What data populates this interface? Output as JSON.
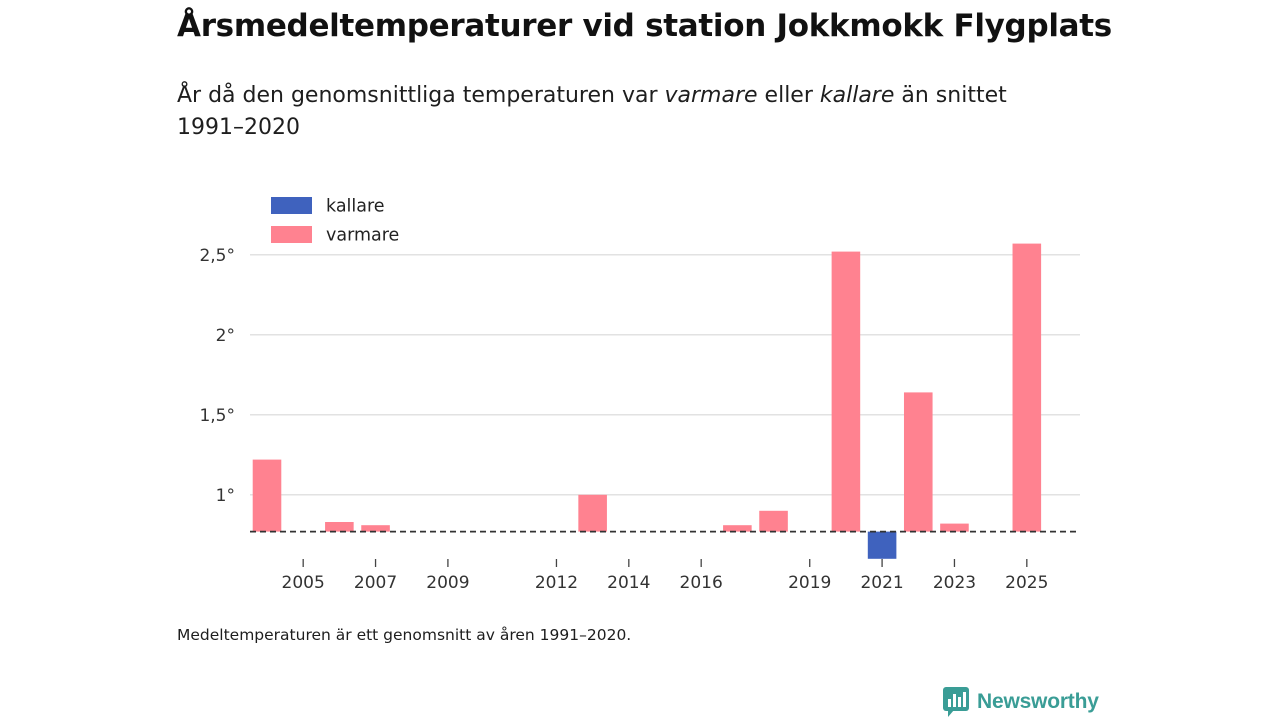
{
  "title": "Årsmedeltemperaturer vid station Jokkmokk Flygplats",
  "subtitle": {
    "before": "År då den genomsnittliga temperaturen var ",
    "warmer_word": "varmare",
    "middle": " eller ",
    "colder_word": "kallare",
    "after": " än snittet 1991–2020"
  },
  "footnote": "Medeltemperaturen är ett genomsnitt av åren 1991–2020.",
  "brand": {
    "name": "Newsworthy",
    "icon": "newsworthy-logo-icon",
    "color": "#3a9d96"
  },
  "colors": {
    "warmer": "#ff8290",
    "colder": "#3f62be",
    "grid": "#d9d9d9",
    "baseline": "#333333"
  },
  "chart_data": {
    "type": "bar",
    "title": "Årsmedeltemperaturer vid station Jokkmokk Flygplats",
    "xlabel": "",
    "ylabel": "",
    "baseline": 0.77,
    "baseline_style": "dashed",
    "ylim": [
      0.53,
      2.78
    ],
    "yticks": [
      1,
      1.5,
      2,
      2.5
    ],
    "ytick_labels": [
      "1°",
      "1,5°",
      "2°",
      "2,5°"
    ],
    "x_range": [
      2004,
      2026
    ],
    "xticks": [
      2005,
      2007,
      2009,
      2012,
      2014,
      2016,
      2019,
      2021,
      2023,
      2025
    ],
    "xtick_labels": [
      "2005",
      "2007",
      "2009",
      "2012",
      "2014",
      "2016",
      "2019",
      "2021",
      "2023",
      "2025"
    ],
    "grid": true,
    "legend": {
      "position": "top-left",
      "entries": [
        {
          "label": "kallare",
          "key": "colder"
        },
        {
          "label": "varmare",
          "key": "warmer"
        }
      ]
    },
    "bars": [
      {
        "year": 2004,
        "value": 1.22,
        "category": "warmer"
      },
      {
        "year": 2006,
        "value": 0.83,
        "category": "warmer"
      },
      {
        "year": 2007,
        "value": 0.81,
        "category": "warmer"
      },
      {
        "year": 2013,
        "value": 1.0,
        "category": "warmer"
      },
      {
        "year": 2017,
        "value": 0.81,
        "category": "warmer"
      },
      {
        "year": 2018,
        "value": 0.9,
        "category": "warmer"
      },
      {
        "year": 2020,
        "value": 2.52,
        "category": "warmer"
      },
      {
        "year": 2021,
        "value": 0.6,
        "category": "colder"
      },
      {
        "year": 2022,
        "value": 1.64,
        "category": "warmer"
      },
      {
        "year": 2023,
        "value": 0.82,
        "category": "warmer"
      },
      {
        "year": 2025,
        "value": 2.57,
        "category": "warmer"
      }
    ]
  }
}
